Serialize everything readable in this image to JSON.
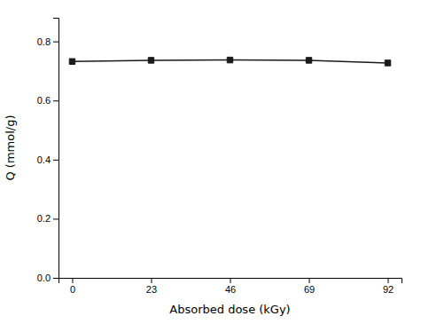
{
  "chart_data": {
    "type": "line",
    "x": [
      0,
      23,
      46,
      69,
      92
    ],
    "values": [
      0.732,
      0.736,
      0.737,
      0.736,
      0.727
    ],
    "color": "#1a1a1a",
    "marker": "square",
    "xlabel": "Absorbed dose (kGy)",
    "ylabel": "Q (mmol/g)",
    "xlim": [
      -4,
      96
    ],
    "ylim": [
      0.0,
      0.88
    ],
    "xticks": [
      0,
      23,
      46,
      69,
      92
    ],
    "yticks": [
      {
        "value": 0.0,
        "label": "0.0"
      },
      0.2,
      0.4,
      0.6,
      0.8
    ]
  }
}
